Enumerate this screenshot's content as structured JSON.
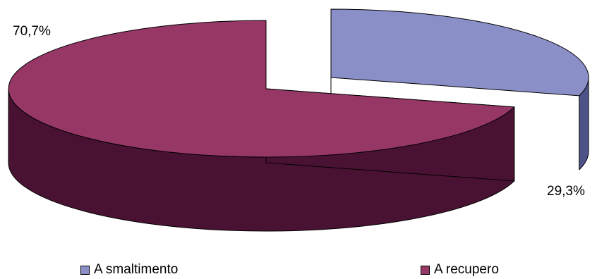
{
  "chart_data": {
    "type": "pie",
    "style": "3d-exploded",
    "title": "",
    "legend_position": "bottom",
    "slices": [
      {
        "name": "A smaltimento",
        "value": 29.3,
        "label": "29,3%",
        "color": "#8a8fc8",
        "side_color": "#4d5289"
      },
      {
        "name": "A recupero",
        "value": 70.7,
        "label": "70,7%",
        "color": "#963766",
        "side_color": "#4a1232"
      }
    ]
  }
}
